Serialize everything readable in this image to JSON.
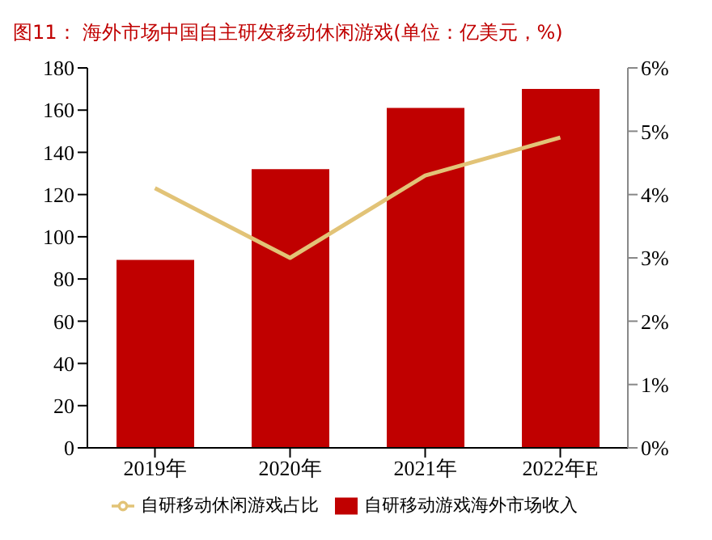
{
  "chart_data": {
    "type": "bar",
    "title": "图11：  海外市场中国自主研发移动休闲游戏(单位：亿美元，%)",
    "categories": [
      "2019年",
      "2020年",
      "2021年",
      "2022年E"
    ],
    "series": [
      {
        "name": "自研移动游戏海外市场收入",
        "color": "#c00000",
        "values": [
          89,
          132,
          161,
          170
        ]
      },
      {
        "name": "自研移动休闲游戏占比",
        "type": "line",
        "axis": "y2",
        "color": "#e2c377",
        "values": [
          4.1,
          3.0,
          4.3,
          4.9
        ]
      }
    ],
    "ylim": [
      0,
      180
    ],
    "yticks": [
      0,
      20,
      40,
      60,
      80,
      100,
      120,
      140,
      160,
      180
    ],
    "y2lim": [
      0,
      6
    ],
    "y2ticks": [
      {
        "value": 0,
        "label": "0%"
      },
      {
        "value": 1,
        "label": "1%"
      },
      {
        "value": 2,
        "label": "2%"
      },
      {
        "value": 3,
        "label": "3%"
      },
      {
        "value": 4,
        "label": "4%"
      },
      {
        "value": 5,
        "label": "5%"
      },
      {
        "value": 6,
        "label": "6%"
      }
    ],
    "grid": false,
    "legend": "bottom",
    "marker": "none"
  }
}
